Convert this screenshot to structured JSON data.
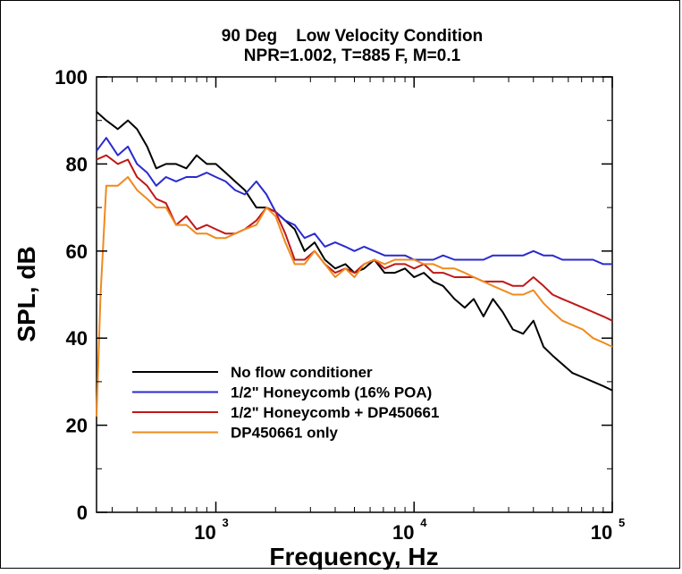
{
  "chart_data": {
    "type": "line",
    "title": "90 Deg    Low Velocity Condition",
    "subtitle": "NPR=1.002, T=885 F, M=0.1",
    "xlabel": "Frequency, Hz",
    "ylabel": "SPL, dB",
    "x_scale": "log",
    "xlim": [
      250,
      100000
    ],
    "ylim": [
      0,
      100
    ],
    "y_ticks": [
      "0",
      "20",
      "40",
      "60",
      "80",
      "100"
    ],
    "x_ticks": [
      {
        "value": 1000,
        "base": "10",
        "exp": "3"
      },
      {
        "value": 10000,
        "base": "10",
        "exp": "4"
      },
      {
        "value": 100000,
        "base": "10",
        "exp": "5"
      }
    ],
    "grid": false,
    "legend_position": "bottom-left",
    "series": [
      {
        "name": "No flow conditioner",
        "color": "#000000",
        "x": [
          250,
          280,
          320,
          360,
          400,
          450,
          500,
          560,
          630,
          710,
          800,
          900,
          1000,
          1120,
          1250,
          1400,
          1600,
          1800,
          2000,
          2240,
          2500,
          2800,
          3150,
          3550,
          4000,
          4500,
          5000,
          5600,
          6300,
          7100,
          8000,
          9000,
          10000,
          11200,
          12500,
          14000,
          16000,
          18000,
          20000,
          22400,
          25000,
          28000,
          31500,
          35500,
          40000,
          45000,
          50000,
          56000,
          63000,
          71000,
          80000,
          90000,
          100000
        ],
        "y": [
          92,
          90,
          88,
          90,
          88,
          84,
          79,
          80,
          80,
          79,
          82,
          80,
          80,
          78,
          76,
          74,
          70,
          70,
          69,
          67,
          65,
          60,
          62,
          58,
          56,
          57,
          55,
          56,
          58,
          55,
          55,
          56,
          54,
          55,
          53,
          52,
          49,
          47,
          49,
          45,
          49,
          46,
          42,
          41,
          44,
          38,
          36,
          34,
          32,
          31,
          30,
          29,
          28
        ]
      },
      {
        "name": "1/2\" Honeycomb (16% POA)",
        "color": "#2a2ad0",
        "x": [
          250,
          280,
          320,
          360,
          400,
          450,
          500,
          560,
          630,
          710,
          800,
          900,
          1000,
          1120,
          1250,
          1400,
          1600,
          1800,
          2000,
          2240,
          2500,
          2800,
          3150,
          3550,
          4000,
          4500,
          5000,
          5600,
          6300,
          7100,
          8000,
          9000,
          10000,
          11200,
          12500,
          14000,
          16000,
          18000,
          20000,
          22400,
          25000,
          28000,
          31500,
          35500,
          40000,
          45000,
          50000,
          56000,
          63000,
          71000,
          80000,
          90000,
          100000
        ],
        "y": [
          83,
          86,
          82,
          84,
          80,
          78,
          75,
          77,
          76,
          77,
          77,
          78,
          77,
          76,
          74,
          73,
          76,
          73,
          69,
          67,
          66,
          63,
          64,
          61,
          62,
          61,
          60,
          61,
          60,
          59,
          59,
          59,
          58,
          58,
          58,
          59,
          58,
          58,
          58,
          58,
          59,
          59,
          59,
          59,
          60,
          59,
          59,
          58,
          58,
          58,
          58,
          57,
          57
        ]
      },
      {
        "name": "1/2\" Honeycomb + DP450661",
        "color": "#c01818",
        "x": [
          250,
          280,
          320,
          360,
          400,
          450,
          500,
          560,
          630,
          710,
          800,
          900,
          1000,
          1120,
          1250,
          1400,
          1600,
          1800,
          2000,
          2240,
          2500,
          2800,
          3150,
          3550,
          4000,
          4500,
          5000,
          5600,
          6300,
          7100,
          8000,
          9000,
          10000,
          11200,
          12500,
          14000,
          16000,
          18000,
          20000,
          22400,
          25000,
          28000,
          31500,
          35500,
          40000,
          45000,
          50000,
          56000,
          63000,
          71000,
          80000,
          90000,
          100000
        ],
        "y": [
          81,
          82,
          80,
          81,
          77,
          75,
          72,
          71,
          66,
          68,
          65,
          66,
          65,
          64,
          64,
          65,
          67,
          70,
          69,
          64,
          58,
          58,
          60,
          57,
          55,
          56,
          55,
          57,
          58,
          56,
          57,
          57,
          56,
          57,
          55,
          55,
          54,
          54,
          54,
          53,
          53,
          53,
          52,
          52,
          54,
          52,
          50,
          49,
          48,
          47,
          46,
          45,
          44
        ]
      },
      {
        "name": "DP450661 only",
        "color": "#f08a1c",
        "x": [
          250,
          262,
          280,
          320,
          360,
          400,
          450,
          500,
          560,
          630,
          710,
          800,
          900,
          1000,
          1120,
          1250,
          1400,
          1600,
          1800,
          2000,
          2240,
          2500,
          2800,
          3150,
          3550,
          4000,
          4500,
          5000,
          5600,
          6300,
          7100,
          8000,
          9000,
          10000,
          11200,
          12500,
          14000,
          16000,
          18000,
          20000,
          22400,
          25000,
          28000,
          31500,
          35500,
          40000,
          45000,
          50000,
          56000,
          63000,
          71000,
          80000,
          90000,
          100000
        ],
        "y": [
          22,
          50,
          75,
          75,
          77,
          74,
          72,
          70,
          70,
          66,
          66,
          64,
          64,
          63,
          63,
          64,
          65,
          66,
          70,
          68,
          62,
          57,
          57,
          60,
          57,
          54,
          56,
          54,
          57,
          58,
          57,
          58,
          58,
          58,
          57,
          57,
          56,
          56,
          55,
          54,
          53,
          52,
          51,
          50,
          50,
          51,
          48,
          46,
          44,
          43,
          42,
          40,
          39,
          38
        ]
      }
    ]
  }
}
